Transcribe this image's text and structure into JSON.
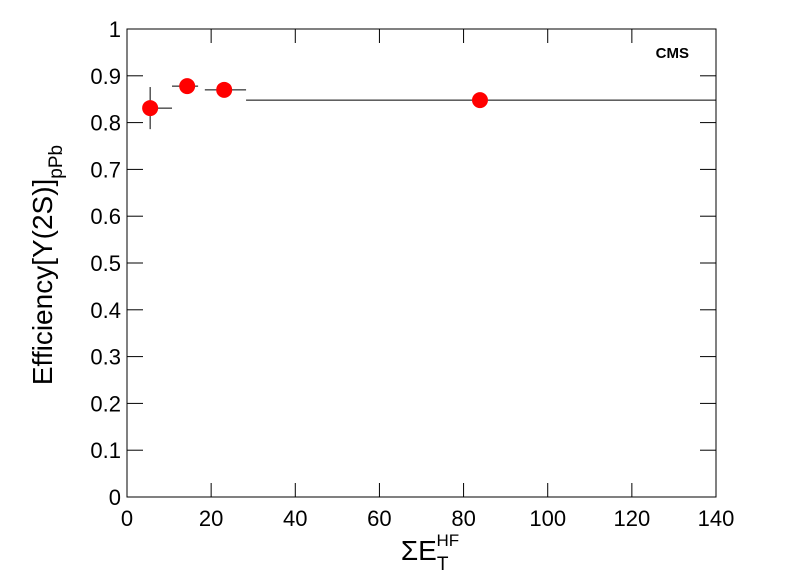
{
  "chart_data": {
    "type": "scatter",
    "annotation": "CMS",
    "x_label": {
      "main": "ΣE",
      "sub": "T",
      "sup": "HF"
    },
    "y_label": {
      "main": "Efficiency[Υ(2S)]",
      "sub": "pPb"
    },
    "series": [
      {
        "color": "#ff0000",
        "x": [
          5.5,
          14.3,
          23.1,
          83.9
        ],
        "values": [
          0.831,
          0.878,
          0.87,
          0.848
        ],
        "yerr": [
          0.045,
          0.015,
          0.012,
          0.008
        ],
        "x_low": [
          4.3,
          10.7,
          18.5,
          28.3
        ],
        "x_high": [
          10.7,
          16.9,
          28.3,
          140
        ]
      }
    ],
    "xlim": [
      0,
      140
    ],
    "xticks": [
      0,
      20,
      40,
      60,
      80,
      100,
      120,
      140
    ],
    "ylim": [
      0,
      1
    ],
    "yticks": [
      0,
      0.1,
      0.2,
      0.3,
      0.4,
      0.5,
      0.6,
      0.7,
      0.8,
      0.9,
      1
    ]
  }
}
